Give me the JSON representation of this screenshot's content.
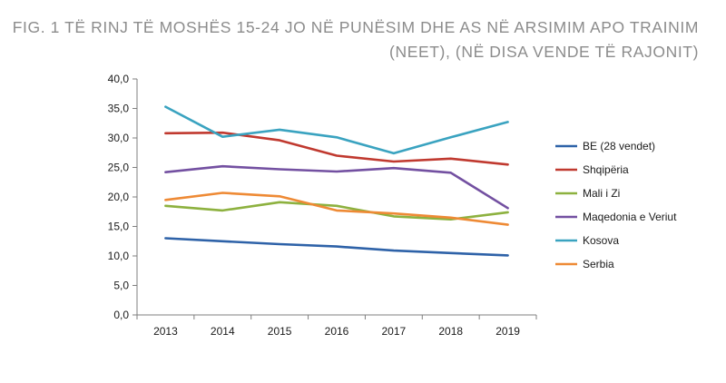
{
  "title": {
    "line1": "FIG. 1  TË RINJ TË MOSHËS 15-24 JO NË PUNËSIM DHE AS NË ARSIMIM APO TRAINIM",
    "line2": "(NEET), (NË DISA VENDE TË RAJONIT)"
  },
  "chart_data": {
    "type": "line",
    "title": "FIG. 1  TË RINJ TË MOSHËS 15-24 JO NË PUNËSIM DHE AS NË ARSIMIM APO TRAINIM (NEET), (NË DISA VENDE TË RAJONIT)",
    "xlabel": "",
    "ylabel": "",
    "categories": [
      "2013",
      "2014",
      "2015",
      "2016",
      "2017",
      "2018",
      "2019"
    ],
    "ylim": [
      0,
      40
    ],
    "yticks": [
      "0,0",
      "5,0",
      "10,0",
      "15,0",
      "20,0",
      "25,0",
      "30,0",
      "35,0",
      "40,0"
    ],
    "grid": false,
    "legend_position": "right",
    "series": [
      {
        "name": "BE (28 vendet)",
        "color": "#2e62a8",
        "values": [
          13.0,
          12.5,
          12.0,
          11.6,
          10.9,
          10.5,
          10.1
        ]
      },
      {
        "name": "Shqipëria",
        "color": "#c0392f",
        "values": [
          30.8,
          30.9,
          29.6,
          27.0,
          26.0,
          26.5,
          25.5
        ]
      },
      {
        "name": "Mali i Zi",
        "color": "#8db13f",
        "values": [
          18.5,
          17.7,
          19.1,
          18.5,
          16.7,
          16.2,
          17.4
        ]
      },
      {
        "name": "Maqedonia e Veriut",
        "color": "#7350a1",
        "values": [
          24.2,
          25.2,
          24.7,
          24.3,
          24.9,
          24.1,
          18.1
        ]
      },
      {
        "name": "Kosova",
        "color": "#3aa3c0",
        "values": [
          35.3,
          30.2,
          31.4,
          30.1,
          27.4,
          30.1,
          32.7
        ]
      },
      {
        "name": "Serbia",
        "color": "#ee8a35",
        "values": [
          19.5,
          20.7,
          20.1,
          17.7,
          17.2,
          16.5,
          15.3
        ]
      }
    ]
  }
}
